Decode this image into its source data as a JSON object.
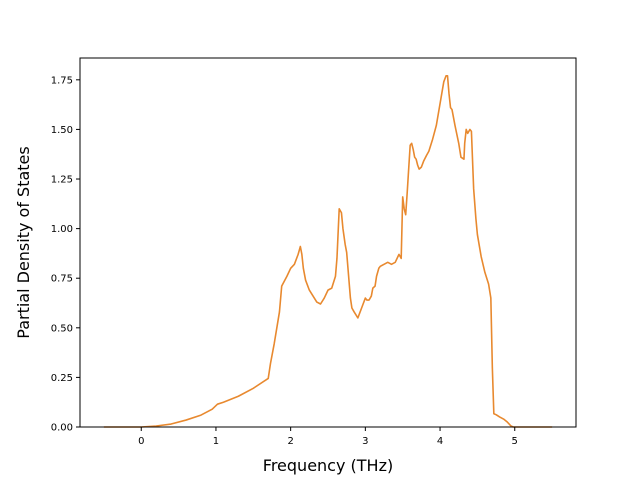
{
  "chart_data": {
    "type": "line",
    "title": "",
    "xlabel": "Frequency (THz)",
    "ylabel": "Partial Density of States",
    "xlim": [
      -0.82,
      5.82
    ],
    "ylim": [
      0,
      1.86
    ],
    "x_ticks": [
      0,
      1,
      2,
      3,
      4,
      5
    ],
    "x_tick_labels": [
      "0",
      "1",
      "2",
      "3",
      "4",
      "5"
    ],
    "y_ticks": [
      0.0,
      0.25,
      0.5,
      0.75,
      1.0,
      1.25,
      1.5,
      1.75
    ],
    "y_tick_labels": [
      "0.00",
      "0.25",
      "0.50",
      "0.75",
      "1.00",
      "1.25",
      "1.50",
      "1.75"
    ],
    "grid": false,
    "legend": "none",
    "series": [
      {
        "color": "#e8892f",
        "x": [
          -0.5,
          -0.2,
          0.0,
          0.2,
          0.4,
          0.6,
          0.8,
          0.95,
          1.02,
          1.1,
          1.3,
          1.5,
          1.7,
          1.73,
          1.78,
          1.85,
          1.88,
          1.95,
          2.0,
          2.05,
          2.1,
          2.13,
          2.15,
          2.17,
          2.2,
          2.25,
          2.3,
          2.35,
          2.4,
          2.45,
          2.5,
          2.55,
          2.6,
          2.62,
          2.65,
          2.68,
          2.7,
          2.73,
          2.75,
          2.8,
          2.82,
          2.85,
          2.9,
          2.93,
          2.95,
          2.97,
          3.0,
          3.02,
          3.05,
          3.08,
          3.1,
          3.13,
          3.15,
          3.18,
          3.2,
          3.25,
          3.3,
          3.35,
          3.4,
          3.45,
          3.48,
          3.5,
          3.52,
          3.54,
          3.56,
          3.58,
          3.6,
          3.62,
          3.64,
          3.66,
          3.68,
          3.7,
          3.72,
          3.75,
          3.78,
          3.82,
          3.85,
          3.9,
          3.95,
          4.0,
          4.05,
          4.08,
          4.1,
          4.12,
          4.14,
          4.16,
          4.2,
          4.25,
          4.28,
          4.32,
          4.33,
          4.35,
          4.37,
          4.4,
          4.42,
          4.45,
          4.48,
          4.5,
          4.55,
          4.6,
          4.65,
          4.68,
          4.7,
          4.72,
          4.75,
          4.8,
          4.85,
          4.9,
          4.95,
          4.98,
          5.0,
          5.02,
          5.1,
          5.2,
          5.3,
          5.4,
          5.5
        ],
        "y": [
          0.0,
          0.0,
          0.0,
          0.005,
          0.015,
          0.035,
          0.06,
          0.09,
          0.115,
          0.125,
          0.155,
          0.195,
          0.245,
          0.32,
          0.42,
          0.58,
          0.71,
          0.76,
          0.8,
          0.82,
          0.87,
          0.91,
          0.87,
          0.8,
          0.74,
          0.69,
          0.66,
          0.63,
          0.62,
          0.65,
          0.69,
          0.7,
          0.76,
          0.85,
          1.1,
          1.08,
          1.0,
          0.92,
          0.88,
          0.65,
          0.6,
          0.58,
          0.55,
          0.58,
          0.6,
          0.62,
          0.65,
          0.64,
          0.64,
          0.66,
          0.7,
          0.71,
          0.76,
          0.8,
          0.81,
          0.82,
          0.83,
          0.82,
          0.83,
          0.87,
          0.85,
          1.16,
          1.1,
          1.07,
          1.18,
          1.3,
          1.42,
          1.43,
          1.4,
          1.36,
          1.35,
          1.32,
          1.3,
          1.31,
          1.34,
          1.37,
          1.39,
          1.45,
          1.52,
          1.63,
          1.74,
          1.77,
          1.77,
          1.68,
          1.61,
          1.6,
          1.52,
          1.43,
          1.36,
          1.35,
          1.43,
          1.5,
          1.48,
          1.5,
          1.49,
          1.2,
          1.05,
          0.97,
          0.86,
          0.78,
          0.72,
          0.65,
          0.3,
          0.067,
          0.062,
          0.05,
          0.04,
          0.025,
          0.005,
          0.0,
          0.0,
          0.0,
          0.0,
          0.0,
          0.0,
          0.0,
          0.0
        ]
      }
    ]
  }
}
